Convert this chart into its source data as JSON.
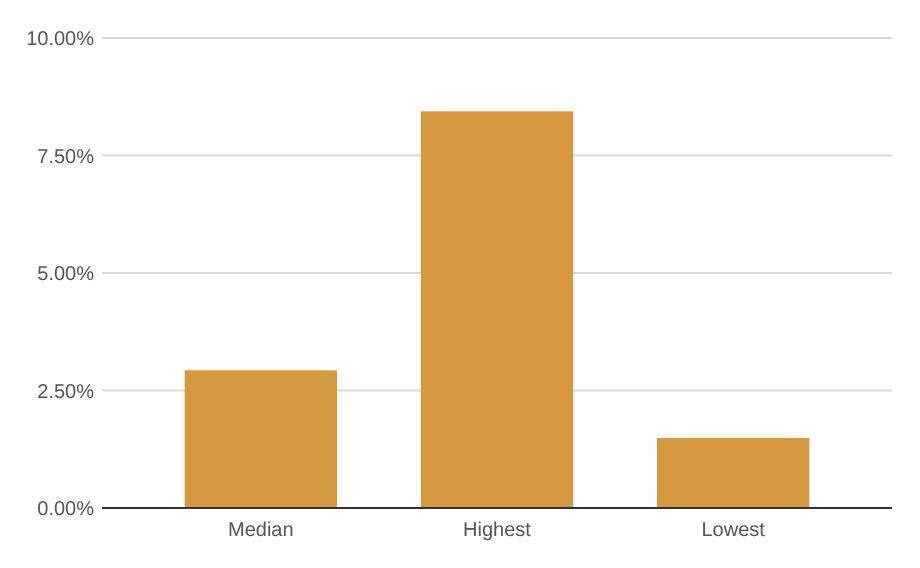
{
  "chart_data": {
    "type": "bar",
    "categories": [
      "Median",
      "Highest",
      "Lowest"
    ],
    "values": [
      2.93,
      8.44,
      1.49
    ],
    "color": "#d59a3f",
    "ylim": [
      0,
      10
    ],
    "yticks": [
      {
        "value": 0,
        "label": "0.00%"
      },
      {
        "value": 2.5,
        "label": "2.50%"
      },
      {
        "value": 5,
        "label": "5.00%"
      },
      {
        "value": 7.5,
        "label": "7.50%"
      },
      {
        "value": 10,
        "label": "10.00%"
      }
    ],
    "grid": "y"
  }
}
